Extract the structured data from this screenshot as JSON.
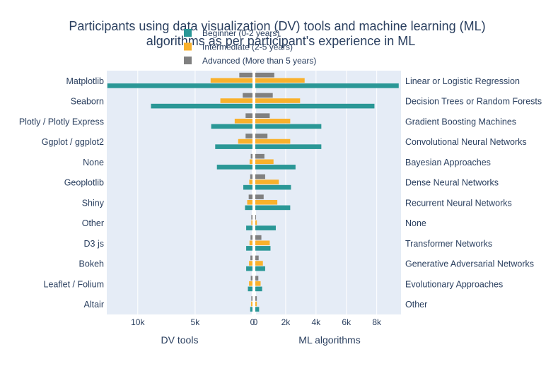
{
  "chart_data": {
    "type": "bar",
    "orientation": "horizontal",
    "title_lines": [
      "Participants using data visualization (DV) tools and machine learning (ML)",
      "algorithms as per participant's experience in ML"
    ],
    "legend": {
      "placement": "top-center",
      "entries": [
        {
          "name": "Beginner (0-2 years)",
          "color": "#2a9796"
        },
        {
          "name": "Intermediate (2-5 years)",
          "color": "#f9b12c"
        },
        {
          "name": "Advanced (More than 5 years)",
          "color": "#808080"
        }
      ]
    },
    "panels": [
      {
        "id": "dv",
        "xlabel": "DV tools",
        "direction": "reversed",
        "xlim": [
          0,
          12700
        ],
        "ticks": [
          {
            "value": 10000,
            "label": "10k"
          },
          {
            "value": 5000,
            "label": "5k"
          },
          {
            "value": 0,
            "label": "0"
          }
        ],
        "categories": [
          "Matplotlib",
          "Seaborn",
          "Plotly / Plotly Express",
          "Ggplot / ggplot2",
          "None",
          "Geoplotlib",
          "Shiny",
          "Other",
          "D3 js",
          "Bokeh",
          "Leaflet / Folium",
          "Altair"
        ],
        "series": [
          {
            "name": "Advanced (More than 5 years)",
            "values": [
              1150,
              850,
              600,
              600,
              150,
              200,
              330,
              100,
              170,
              180,
              150,
              100
            ]
          },
          {
            "name": "Intermediate (2-5 years)",
            "values": [
              3650,
              2800,
              1550,
              1250,
              250,
              280,
              460,
              100,
              260,
              300,
              300,
              120
            ]
          },
          {
            "name": "Beginner (0-2 years)",
            "values": [
              12650,
              8850,
              3600,
              3250,
              3100,
              800,
              650,
              550,
              550,
              550,
              400,
              200
            ]
          }
        ]
      },
      {
        "id": "ml",
        "xlabel": "ML algorithms",
        "direction": "normal",
        "xlim": [
          0,
          9600
        ],
        "ticks": [
          {
            "value": 0,
            "label": "0"
          },
          {
            "value": 2000,
            "label": "2k"
          },
          {
            "value": 4000,
            "label": "4k"
          },
          {
            "value": 6000,
            "label": "6k"
          },
          {
            "value": 8000,
            "label": "8k"
          }
        ],
        "categories": [
          "Linear or Logistic Regression",
          "Decision Trees or Random Forests",
          "Gradient Boosting Machines",
          "Convolutional Neural Networks",
          "Bayesian Approaches",
          "Dense Neural Networks",
          "Recurrent Neural Networks",
          "None",
          "Transformer Networks",
          "Generative Adversarial Networks",
          "Evolutionary Approaches",
          "Other"
        ],
        "series": [
          {
            "name": "Advanced (More than 5 years)",
            "values": [
              1250,
              1150,
              950,
              800,
              600,
              650,
              550,
              50,
              400,
              220,
              200,
              100
            ]
          },
          {
            "name": "Intermediate (2-5 years)",
            "values": [
              3250,
              2950,
              2300,
              2300,
              1200,
              1550,
              1450,
              100,
              950,
              500,
              350,
              100
            ]
          },
          {
            "name": "Beginner (0-2 years)",
            "values": [
              9450,
              7850,
              4350,
              4350,
              2650,
              2350,
              2300,
              1350,
              1000,
              650,
              450,
              250
            ]
          }
        ]
      }
    ]
  }
}
